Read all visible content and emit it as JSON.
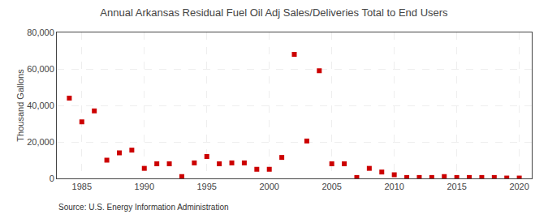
{
  "chart_data": {
    "type": "scatter",
    "title": "Annual Arkansas Residual Fuel Oil Adj Sales/Deliveries Total to End Users",
    "ylabel": "Thousand Gallons",
    "annotations": [
      "Source: U.S. Energy Information Administration"
    ],
    "x": [
      1984,
      1985,
      1986,
      1987,
      1988,
      1989,
      1990,
      1991,
      1992,
      1993,
      1994,
      1995,
      1996,
      1997,
      1998,
      1999,
      2000,
      2001,
      2002,
      2003,
      2004,
      2005,
      2006,
      2007,
      2008,
      2009,
      2010,
      2011,
      2012,
      2013,
      2014,
      2015,
      2016,
      2017,
      2018,
      2019,
      2020
    ],
    "values": [
      44000,
      31000,
      37000,
      10000,
      14000,
      15500,
      5500,
      8000,
      8000,
      1000,
      8500,
      12000,
      8000,
      8500,
      8500,
      5000,
      5000,
      11500,
      68000,
      20500,
      59000,
      8000,
      8000,
      500,
      5500,
      3500,
      2000,
      500,
      500,
      500,
      1000,
      500,
      500,
      500,
      500,
      200,
      200
    ],
    "color": "#cc0000",
    "marker": "square",
    "xlim": [
      1983,
      2021
    ],
    "xticks": [
      1985,
      1990,
      1995,
      2000,
      2005,
      2010,
      2015,
      2020
    ],
    "ylim": [
      0,
      80000
    ],
    "yticks": [
      0,
      {
        "value": 20000,
        "label": "20,000"
      },
      {
        "value": 40000,
        "label": "40,000"
      },
      {
        "value": 60000,
        "label": "60,000"
      },
      {
        "value": 80000,
        "label": "80,000"
      }
    ],
    "grid": true
  }
}
